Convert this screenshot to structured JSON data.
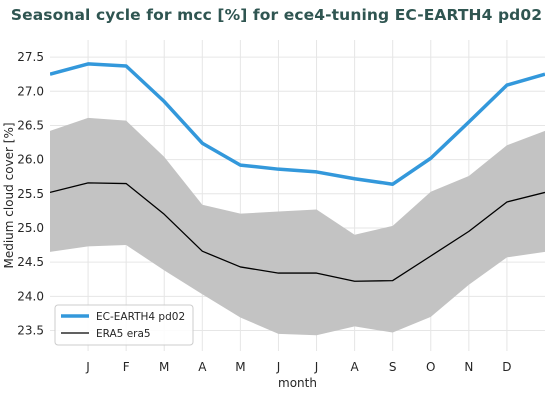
{
  "chart_data": {
    "type": "line",
    "title": "Seasonal cycle for mcc [%] for ece4-tuning EC-EARTH4 pd02",
    "xlabel": "month",
    "ylabel": "Medium cloud cover [%]",
    "categories": [
      "J",
      "F",
      "M",
      "A",
      "M",
      "J",
      "J",
      "A",
      "S",
      "O",
      "N",
      "D"
    ],
    "xlim": [
      "D",
      "J"
    ],
    "ylim": [
      23.2,
      27.75
    ],
    "yticks": [
      "23.5",
      "24.0",
      "24.5",
      "25.0",
      "25.5",
      "26.0",
      "26.5",
      "27.0",
      "27.5"
    ],
    "wrap_values": {
      "EC-EARTH4 pd02": [
        27.25,
        27.25
      ],
      "ERA5 era5": [
        25.52,
        25.52
      ],
      "band_upper": [
        26.42,
        26.42
      ],
      "band_lower": [
        24.65,
        24.65
      ]
    },
    "series": [
      {
        "name": "EC-EARTH4 pd02",
        "color": "#3398db",
        "values": [
          27.4,
          27.37,
          26.85,
          26.24,
          25.92,
          25.86,
          25.82,
          25.72,
          25.64,
          26.02,
          26.55,
          27.09
        ]
      },
      {
        "name": "ERA5 era5",
        "color": "#000000",
        "values": [
          25.66,
          25.65,
          25.2,
          24.66,
          24.43,
          24.34,
          24.34,
          24.22,
          24.23,
          24.59,
          24.95,
          25.38
        ]
      }
    ],
    "band": {
      "color": "#c3c3c3",
      "upper": [
        26.61,
        26.57,
        26.04,
        25.34,
        25.21,
        25.24,
        25.27,
        24.9,
        25.03,
        25.53,
        25.76,
        26.21
      ],
      "lower": [
        24.73,
        24.75,
        24.38,
        24.03,
        23.69,
        23.45,
        23.43,
        23.56,
        23.47,
        23.7,
        24.17,
        24.57
      ]
    },
    "legend": {
      "position": "lower-left",
      "entries": [
        "EC-EARTH4 pd02",
        "ERA5 era5"
      ]
    },
    "grid": true
  }
}
